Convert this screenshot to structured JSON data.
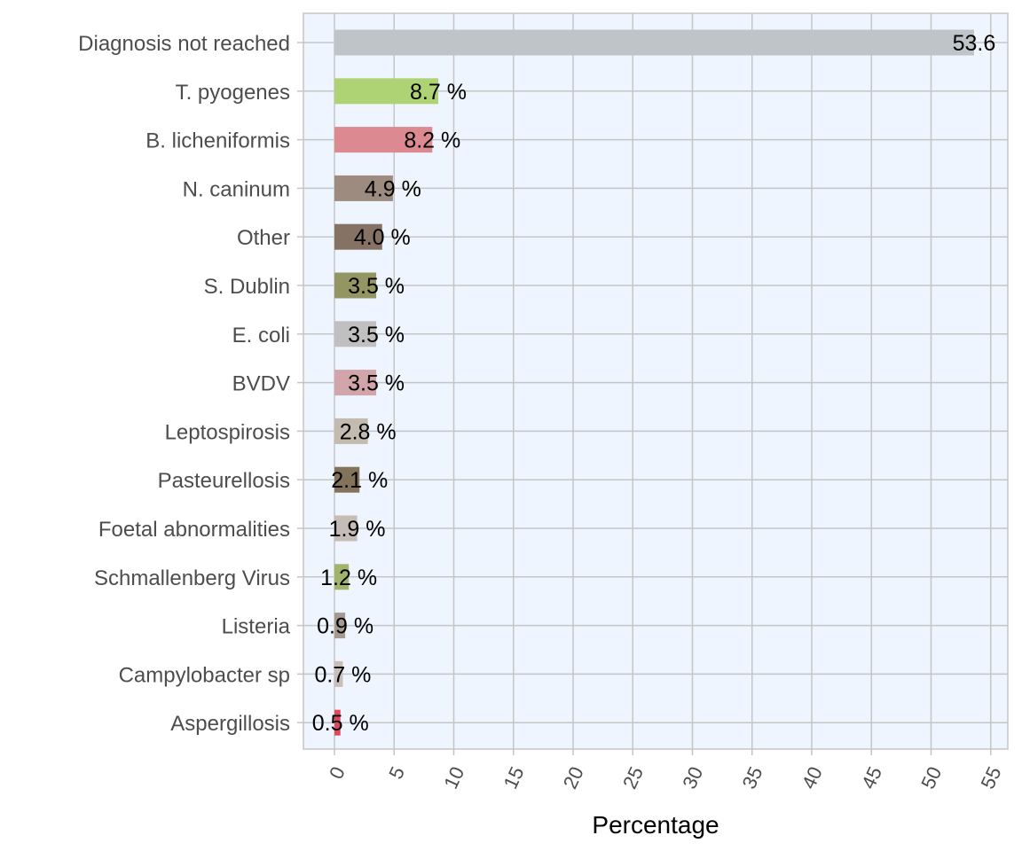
{
  "chart_data": {
    "type": "bar",
    "orientation": "horizontal",
    "xlabel": "Percentage",
    "ylabel": "",
    "xlim": [
      0,
      55
    ],
    "xticks": [
      0,
      5,
      10,
      15,
      20,
      25,
      30,
      35,
      40,
      45,
      50,
      55
    ],
    "grid": true,
    "colors": {
      "panel_background": "#EEF5FF",
      "grid": "#C5C5C5"
    },
    "categories": [
      "Diagnosis not reached",
      "T. pyogenes",
      "B. licheniformis",
      "N. caninum",
      "Other",
      "S. Dublin",
      "E. coli",
      "BVDV",
      "Leptospirosis",
      "Pasteurellosis",
      "Foetal abnormalities",
      "Schmallenberg Virus",
      "Listeria",
      "Campylobacter sp",
      "Aspergillosis"
    ],
    "values": [
      53.6,
      8.7,
      8.2,
      4.9,
      4.0,
      3.5,
      3.5,
      3.5,
      2.8,
      2.1,
      1.9,
      1.2,
      0.9,
      0.7,
      0.5
    ],
    "value_labels": [
      "53.6",
      "8.7 %",
      "8.2 %",
      "4.9 %",
      "4.0 %",
      "3.5 %",
      "3.5 %",
      "3.5 %",
      "2.8 %",
      "2.1 %",
      "1.9 %",
      "1.2 %",
      "0.9 %",
      "0.7 %",
      "0.5 %"
    ],
    "bar_colors": [
      "#BFC4C8",
      "#AED375",
      "#DC8991",
      "#9C8B7E",
      "#857264",
      "#939563",
      "#C0C0C0",
      "#D2A5AB",
      "#C4BBB0",
      "#83735A",
      "#C4BCB5",
      "#A1B46B",
      "#A59A92",
      "#C8BEBA",
      "#E0475E"
    ]
  }
}
